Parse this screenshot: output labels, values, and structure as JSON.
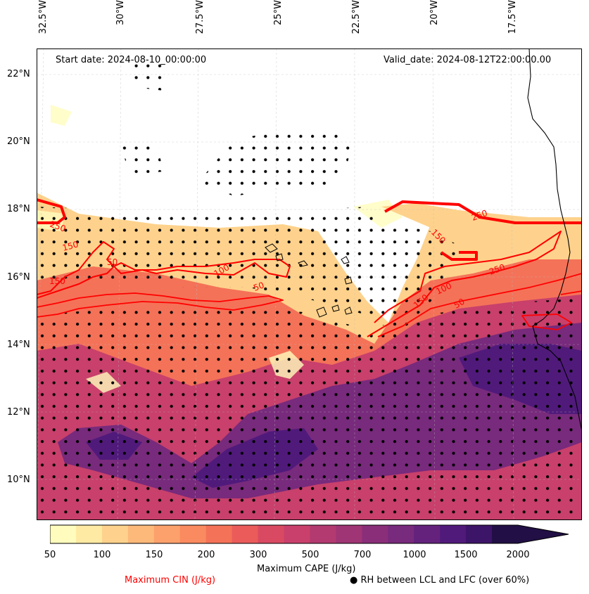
{
  "map": {
    "start_date": "Start date: 2024-08-10_00:00:00",
    "valid_date": "Valid_date: 2024-08-12T22:00:00.00",
    "lon_labels": [
      "32.5°W",
      "30°W",
      "27.5°W",
      "25°W",
      "22.5°W",
      "20°W",
      "17.5°W"
    ],
    "lat_labels": [
      "22°N",
      "20°N",
      "18°N",
      "16°N",
      "14°N",
      "12°N",
      "10°N"
    ],
    "cin_contour_labels": [
      "250",
      "150",
      "50",
      "100",
      "150",
      "50",
      "150",
      "250",
      "150",
      "50",
      "100",
      "250"
    ],
    "colors": {
      "cin_contour": "#ff0000",
      "coastline": "#000000",
      "dots": "#000000"
    }
  },
  "colorbar": {
    "ticks": [
      "50",
      "100",
      "150",
      "200",
      "300",
      "500",
      "700",
      "1000",
      "1500",
      "2000"
    ],
    "colors": [
      "#fffcbd",
      "#feeaa3",
      "#fed28c",
      "#fdb97a",
      "#fca16c",
      "#fa8a5f",
      "#f47258",
      "#ea5b5a",
      "#d94a62",
      "#c8406b",
      "#b33a71",
      "#a03575",
      "#8b2e79",
      "#782a7c",
      "#64227d",
      "#501a7b",
      "#3c1468",
      "#210f45"
    ],
    "label": "Maximum CAPE (J/kg)"
  },
  "legend": {
    "cin_label": "Maximum CIN (J/kg)",
    "rh_label": "● RH between LCL and LFC (over 60%)"
  }
}
